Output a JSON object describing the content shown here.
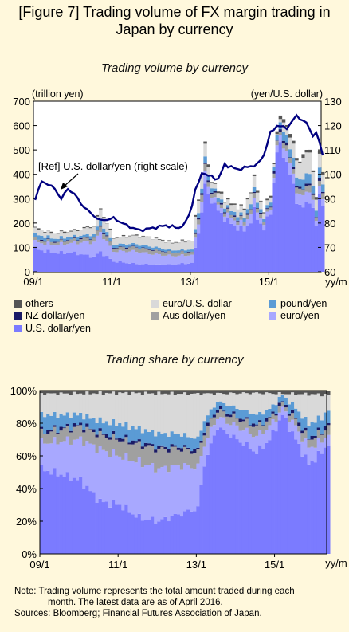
{
  "figure_title_line1": "[Figure 7] Trading volume of FX margin trading in",
  "figure_title_line2": "Japan by currency",
  "note_line1": "Note: Trading volume represents the total amount traded during each",
  "note_line2": "month. The latest data are as of April 2016.",
  "note_line3": "Sources: Bloomberg; Financial Futures Association of Japan.",
  "colors": {
    "usd_yen": "#7b7bff",
    "euro_yen": "#a8a8ff",
    "aus_yen": "#a0a0a0",
    "nzd_yen": "#1a1a66",
    "pound_yen": "#5b9bd5",
    "euro_usd": "#d9d9d9",
    "others": "#555555",
    "fx_line": "#000080"
  },
  "legend": [
    {
      "key": "others",
      "label": "others"
    },
    {
      "key": "euro_usd",
      "label": "euro/U.S. dollar"
    },
    {
      "key": "pound_yen",
      "label": "pound/yen"
    },
    {
      "key": "nzd_yen",
      "label": "NZ dollar/yen"
    },
    {
      "key": "aus_yen",
      "label": "Aus dollar/yen"
    },
    {
      "key": "euro_yen",
      "label": "euro/yen"
    },
    {
      "key": "usd_yen",
      "label": "U.S. dollar/yen"
    }
  ],
  "chart_data": [
    {
      "type": "area",
      "title": "Trading volume by currency",
      "ylabel": "(trillion yen)",
      "y2label": "(yen/U.S. dollar)",
      "xunit": "yy/m",
      "ylim": [
        0,
        700
      ],
      "y2lim": [
        60,
        130
      ],
      "yticks": [
        "0",
        "100",
        "200",
        "300",
        "400",
        "500",
        "600",
        "700"
      ],
      "y2ticks": [
        "60",
        "70",
        "80",
        "90",
        "100",
        "110",
        "120",
        "130"
      ],
      "xticks": [
        "09/1",
        "11/1",
        "13/1",
        "15/1"
      ],
      "annotation": "[Ref] U.S. dollar/yen (right scale)",
      "x_start": "2009-01",
      "x_end": "2016-04",
      "total_volume_anchors": [
        [
          0,
          180
        ],
        [
          6,
          160
        ],
        [
          12,
          170
        ],
        [
          18,
          190
        ],
        [
          20,
          260
        ],
        [
          24,
          140
        ],
        [
          30,
          150
        ],
        [
          36,
          140
        ],
        [
          42,
          120
        ],
        [
          48,
          130
        ],
        [
          49,
          220
        ],
        [
          51,
          400
        ],
        [
          52,
          540
        ],
        [
          53,
          420
        ],
        [
          56,
          330
        ],
        [
          60,
          280
        ],
        [
          64,
          260
        ],
        [
          67,
          380
        ],
        [
          70,
          250
        ],
        [
          72,
          320
        ],
        [
          74,
          580
        ],
        [
          76,
          650
        ],
        [
          78,
          560
        ],
        [
          81,
          450
        ],
        [
          84,
          520
        ],
        [
          86,
          300
        ],
        [
          87,
          500
        ],
        [
          88,
          420
        ]
      ],
      "usd_yen_rate_anchors": [
        [
          0,
          90
        ],
        [
          2,
          97
        ],
        [
          4,
          96
        ],
        [
          6,
          94
        ],
        [
          8,
          90
        ],
        [
          10,
          94
        ],
        [
          12,
          92
        ],
        [
          14,
          88
        ],
        [
          17,
          84
        ],
        [
          20,
          81
        ],
        [
          24,
          82
        ],
        [
          28,
          79
        ],
        [
          32,
          77
        ],
        [
          36,
          78
        ],
        [
          40,
          79
        ],
        [
          44,
          78
        ],
        [
          46,
          80
        ],
        [
          48,
          87
        ],
        [
          49,
          94
        ],
        [
          50,
          96
        ],
        [
          51,
          101
        ],
        [
          52,
          100
        ],
        [
          54,
          99
        ],
        [
          56,
          98
        ],
        [
          58,
          104
        ],
        [
          60,
          103
        ],
        [
          62,
          102
        ],
        [
          65,
          103
        ],
        [
          68,
          104
        ],
        [
          70,
          108
        ],
        [
          72,
          117
        ],
        [
          74,
          120
        ],
        [
          77,
          119
        ],
        [
          80,
          124
        ],
        [
          83,
          121
        ],
        [
          85,
          116
        ],
        [
          86,
          117
        ],
        [
          87,
          113
        ],
        [
          88,
          108
        ]
      ]
    },
    {
      "type": "area",
      "title": "Trading share by currency",
      "ylim": [
        0,
        100
      ],
      "yticks": [
        "0%",
        "20%",
        "40%",
        "60%",
        "80%",
        "100%"
      ],
      "xticks": [
        "09/1",
        "11/1",
        "13/1",
        "15/1"
      ],
      "xunit": "yy/m",
      "usd_yen_share_anchors": [
        [
          0,
          52
        ],
        [
          12,
          45
        ],
        [
          18,
          32
        ],
        [
          24,
          30
        ],
        [
          30,
          22
        ],
        [
          36,
          20
        ],
        [
          42,
          24
        ],
        [
          48,
          28
        ],
        [
          50,
          55
        ],
        [
          54,
          78
        ],
        [
          60,
          70
        ],
        [
          66,
          62
        ],
        [
          70,
          70
        ],
        [
          74,
          85
        ],
        [
          78,
          70
        ],
        [
          82,
          55
        ],
        [
          86,
          62
        ],
        [
          88,
          68
        ]
      ],
      "euro_yen_share_anchors": [
        [
          0,
          16
        ],
        [
          12,
          25
        ],
        [
          18,
          32
        ],
        [
          24,
          30
        ],
        [
          30,
          34
        ],
        [
          36,
          32
        ],
        [
          42,
          30
        ],
        [
          48,
          25
        ],
        [
          50,
          12
        ],
        [
          54,
          6
        ],
        [
          60,
          8
        ],
        [
          66,
          10
        ],
        [
          70,
          8
        ],
        [
          74,
          4
        ],
        [
          78,
          8
        ],
        [
          82,
          10
        ],
        [
          86,
          7
        ],
        [
          88,
          6
        ]
      ],
      "aus_yen_share_anchors": [
        [
          0,
          6
        ],
        [
          12,
          8
        ],
        [
          24,
          10
        ],
        [
          36,
          12
        ],
        [
          48,
          9
        ],
        [
          54,
          4
        ],
        [
          66,
          6
        ],
        [
          74,
          3
        ],
        [
          82,
          5
        ],
        [
          88,
          5
        ]
      ],
      "nzd_yen_share_anchors": [
        [
          0,
          1
        ],
        [
          24,
          1.5
        ],
        [
          48,
          1.5
        ],
        [
          66,
          1
        ],
        [
          88,
          1.5
        ]
      ],
      "pound_yen_share_anchors": [
        [
          0,
          10
        ],
        [
          12,
          6
        ],
        [
          24,
          8
        ],
        [
          36,
          8
        ],
        [
          48,
          7
        ],
        [
          54,
          4
        ],
        [
          66,
          6
        ],
        [
          74,
          4
        ],
        [
          82,
          8
        ],
        [
          88,
          8
        ]
      ],
      "others_share_anchors": [
        [
          0,
          2
        ],
        [
          24,
          1.5
        ],
        [
          48,
          2
        ],
        [
          66,
          1.5
        ],
        [
          88,
          2.5
        ]
      ]
    }
  ]
}
